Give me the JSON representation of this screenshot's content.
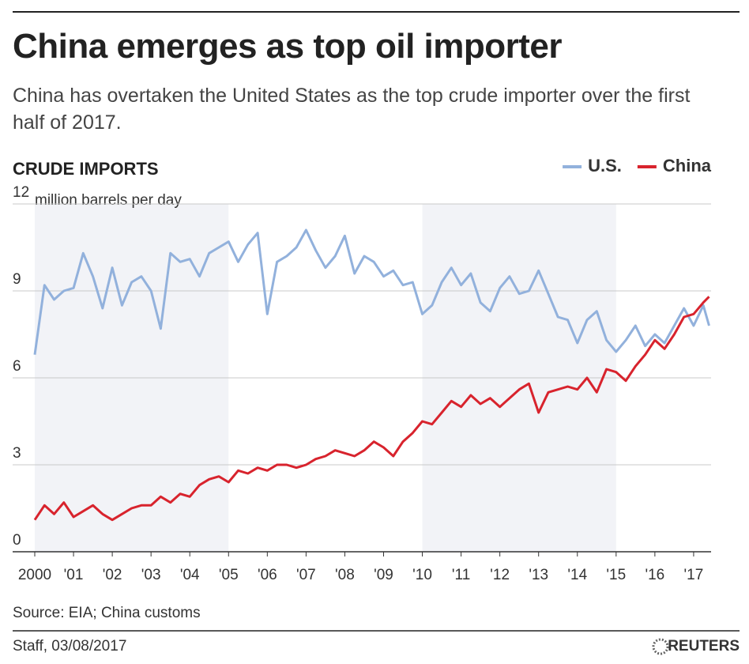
{
  "chart_data": {
    "type": "line",
    "title": "China emerges as top oil importer",
    "subtitle": "China has overtaken the United States as the top crude importer over the first half of 2017.",
    "heading": "CRUDE IMPORTS",
    "y_label": "million barrels per day",
    "source": "Source: EIA; China customs",
    "credit": "Staff,  03/08/2017",
    "brand": "REUTERS",
    "legend": "top-right",
    "grid": true,
    "xlim": [
      2000,
      2017.45
    ],
    "xticks": [
      2000,
      {
        "value": 2001,
        "label": "'01"
      },
      {
        "value": 2002,
        "label": "'02"
      },
      {
        "value": 2003,
        "label": "'03"
      },
      {
        "value": 2004,
        "label": "'04"
      },
      {
        "value": 2005,
        "label": "'05"
      },
      {
        "value": 2006,
        "label": "'06"
      },
      {
        "value": 2007,
        "label": "'07"
      },
      {
        "value": 2008,
        "label": "'08"
      },
      {
        "value": 2009,
        "label": "'09"
      },
      {
        "value": 2010,
        "label": "'10"
      },
      {
        "value": 2011,
        "label": "'11"
      },
      {
        "value": 2012,
        "label": "'12"
      },
      {
        "value": 2013,
        "label": "'13"
      },
      {
        "value": 2014,
        "label": "'14"
      },
      {
        "value": 2015,
        "label": "'15"
      },
      {
        "value": 2016,
        "label": "'16"
      },
      {
        "value": 2017,
        "label": "'17"
      }
    ],
    "ylim": [
      0,
      12
    ],
    "yticks": [
      0,
      3,
      6,
      9,
      12
    ],
    "x": [
      2000,
      2000.25,
      2000.5,
      2000.75,
      2001,
      2001.25,
      2001.5,
      2001.75,
      2002,
      2002.25,
      2002.5,
      2002.75,
      2003,
      2003.25,
      2003.5,
      2003.75,
      2004,
      2004.25,
      2004.5,
      2004.75,
      2005,
      2005.25,
      2005.5,
      2005.75,
      2006,
      2006.25,
      2006.5,
      2006.75,
      2007,
      2007.25,
      2007.5,
      2007.75,
      2008,
      2008.25,
      2008.5,
      2008.75,
      2009,
      2009.25,
      2009.5,
      2009.75,
      2010,
      2010.25,
      2010.5,
      2010.75,
      2011,
      2011.25,
      2011.5,
      2011.75,
      2012,
      2012.25,
      2012.5,
      2012.75,
      2013,
      2013.25,
      2013.5,
      2013.75,
      2014,
      2014.25,
      2014.5,
      2014.75,
      2015,
      2015.25,
      2015.5,
      2015.75,
      2016,
      2016.25,
      2016.5,
      2016.75,
      2017,
      2017.25,
      2017.4
    ],
    "series": [
      {
        "name": "U.S.",
        "color": "#92b1dc",
        "values": [
          6.8,
          9.2,
          8.7,
          9.0,
          9.1,
          10.3,
          9.5,
          8.4,
          9.8,
          8.5,
          9.3,
          9.5,
          9.0,
          7.7,
          10.3,
          10.0,
          10.1,
          9.5,
          10.3,
          10.5,
          10.7,
          10.0,
          10.6,
          11.0,
          8.2,
          10.0,
          10.2,
          10.5,
          11.1,
          10.4,
          9.8,
          10.2,
          10.9,
          9.6,
          10.2,
          10.0,
          9.5,
          9.7,
          9.2,
          9.3,
          8.2,
          8.5,
          9.3,
          9.8,
          9.2,
          9.6,
          8.6,
          8.3,
          9.1,
          9.5,
          8.9,
          9.0,
          9.7,
          8.9,
          8.1,
          8.0,
          7.2,
          8.0,
          8.3,
          7.3,
          6.9,
          7.3,
          7.8,
          7.1,
          7.5,
          7.2,
          7.8,
          8.4,
          7.8,
          8.5,
          7.8
        ]
      },
      {
        "name": "China",
        "color": "#d8232d",
        "values": [
          1.1,
          1.6,
          1.3,
          1.7,
          1.2,
          1.4,
          1.6,
          1.3,
          1.1,
          1.3,
          1.5,
          1.6,
          1.6,
          1.9,
          1.7,
          2.0,
          1.9,
          2.3,
          2.5,
          2.6,
          2.4,
          2.8,
          2.7,
          2.9,
          2.8,
          3.0,
          3.0,
          2.9,
          3.0,
          3.2,
          3.3,
          3.5,
          3.4,
          3.3,
          3.5,
          3.8,
          3.6,
          3.3,
          3.8,
          4.1,
          4.5,
          4.4,
          4.8,
          5.2,
          5.0,
          5.4,
          5.1,
          5.3,
          5.0,
          5.3,
          5.6,
          5.8,
          4.8,
          5.5,
          5.6,
          5.7,
          5.6,
          6.0,
          5.5,
          6.3,
          6.2,
          5.9,
          6.4,
          6.8,
          7.3,
          7.0,
          7.5,
          8.1,
          8.2,
          8.6,
          8.8
        ]
      }
    ]
  }
}
